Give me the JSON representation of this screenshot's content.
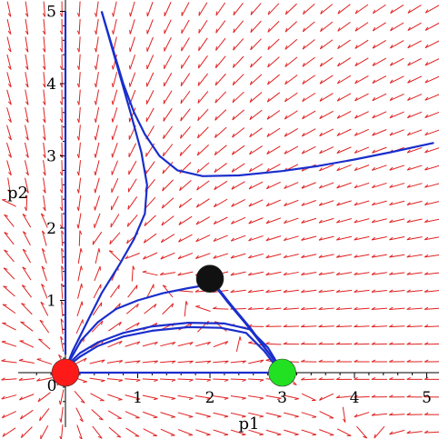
{
  "chart_data": {
    "type": "scatter",
    "title": "",
    "xlabel": "p1",
    "ylabel": "p2",
    "xlim": [
      -0.6,
      5.1
    ],
    "ylim": [
      -0.6,
      5.1
    ],
    "x_ticks": [
      1,
      2,
      3,
      4,
      5
    ],
    "y_ticks": [
      1,
      2,
      3,
      4,
      5
    ],
    "origin_label": "0",
    "grid": false,
    "colors": {
      "field_arrows": "#e02020",
      "trajectories": "#1a2ecc",
      "axes": "#000000",
      "node_origin": "#ff1a1a",
      "node_saddle": "#111111",
      "node_p1": "#22e022"
    },
    "equilibria": [
      {
        "x": 0,
        "y": 0,
        "color": "#ff1a1a"
      },
      {
        "x": 2,
        "y": 1.3,
        "color": "#111111"
      },
      {
        "x": 3,
        "y": 0,
        "color": "#22e022"
      }
    ],
    "trajectories": [
      [
        [
          0.5,
          5.0
        ],
        [
          0.65,
          4.5
        ],
        [
          0.8,
          4.0
        ],
        [
          0.95,
          3.6
        ],
        [
          1.1,
          3.3
        ],
        [
          1.3,
          3.0
        ],
        [
          1.55,
          2.8
        ],
        [
          1.9,
          2.72
        ],
        [
          2.4,
          2.73
        ],
        [
          3.0,
          2.79
        ],
        [
          3.5,
          2.86
        ],
        [
          4.0,
          2.95
        ],
        [
          4.5,
          3.05
        ],
        [
          5.1,
          3.18
        ]
      ],
      [
        [
          0.5,
          5.0
        ],
        [
          0.7,
          4.3
        ],
        [
          0.9,
          3.6
        ],
        [
          1.05,
          3.05
        ],
        [
          1.13,
          2.6
        ],
        [
          1.1,
          2.2
        ],
        [
          0.95,
          1.85
        ],
        [
          0.75,
          1.5
        ],
        [
          0.5,
          1.1
        ],
        [
          0.3,
          0.7
        ],
        [
          0.1,
          0.3
        ],
        [
          0.0,
          0.05
        ]
      ],
      [
        [
          2.0,
          1.22
        ],
        [
          1.7,
          1.17
        ],
        [
          1.35,
          1.1
        ],
        [
          1.0,
          1.0
        ],
        [
          0.7,
          0.88
        ],
        [
          0.45,
          0.7
        ],
        [
          0.22,
          0.45
        ],
        [
          0.05,
          0.15
        ],
        [
          0.0,
          0.03
        ]
      ],
      [
        [
          2.03,
          1.25
        ],
        [
          2.25,
          0.97
        ],
        [
          2.5,
          0.67
        ],
        [
          2.75,
          0.35
        ],
        [
          3.0,
          0.03
        ]
      ],
      [
        [
          2.07,
          1.22
        ],
        [
          2.3,
          0.93
        ],
        [
          2.55,
          0.63
        ],
        [
          2.78,
          0.32
        ],
        [
          3.0,
          0.01
        ]
      ],
      [
        [
          3.0,
          0.02
        ],
        [
          2.8,
          0.35
        ],
        [
          2.55,
          0.6
        ],
        [
          2.2,
          0.68
        ],
        [
          1.7,
          0.69
        ],
        [
          1.2,
          0.64
        ],
        [
          0.8,
          0.55
        ],
        [
          0.45,
          0.42
        ],
        [
          0.2,
          0.27
        ],
        [
          0.0,
          0.08
        ]
      ],
      [
        [
          2.95,
          0.04
        ],
        [
          2.75,
          0.3
        ],
        [
          2.5,
          0.55
        ],
        [
          2.15,
          0.62
        ],
        [
          1.7,
          0.63
        ],
        [
          1.2,
          0.58
        ],
        [
          0.8,
          0.5
        ],
        [
          0.45,
          0.37
        ],
        [
          0.2,
          0.22
        ],
        [
          0.0,
          0.06
        ]
      ],
      [
        [
          0.0,
          0.25
        ],
        [
          0.0,
          5.0
        ]
      ],
      [
        [
          0.0,
          0.0
        ],
        [
          3.0,
          0.0
        ]
      ]
    ]
  }
}
